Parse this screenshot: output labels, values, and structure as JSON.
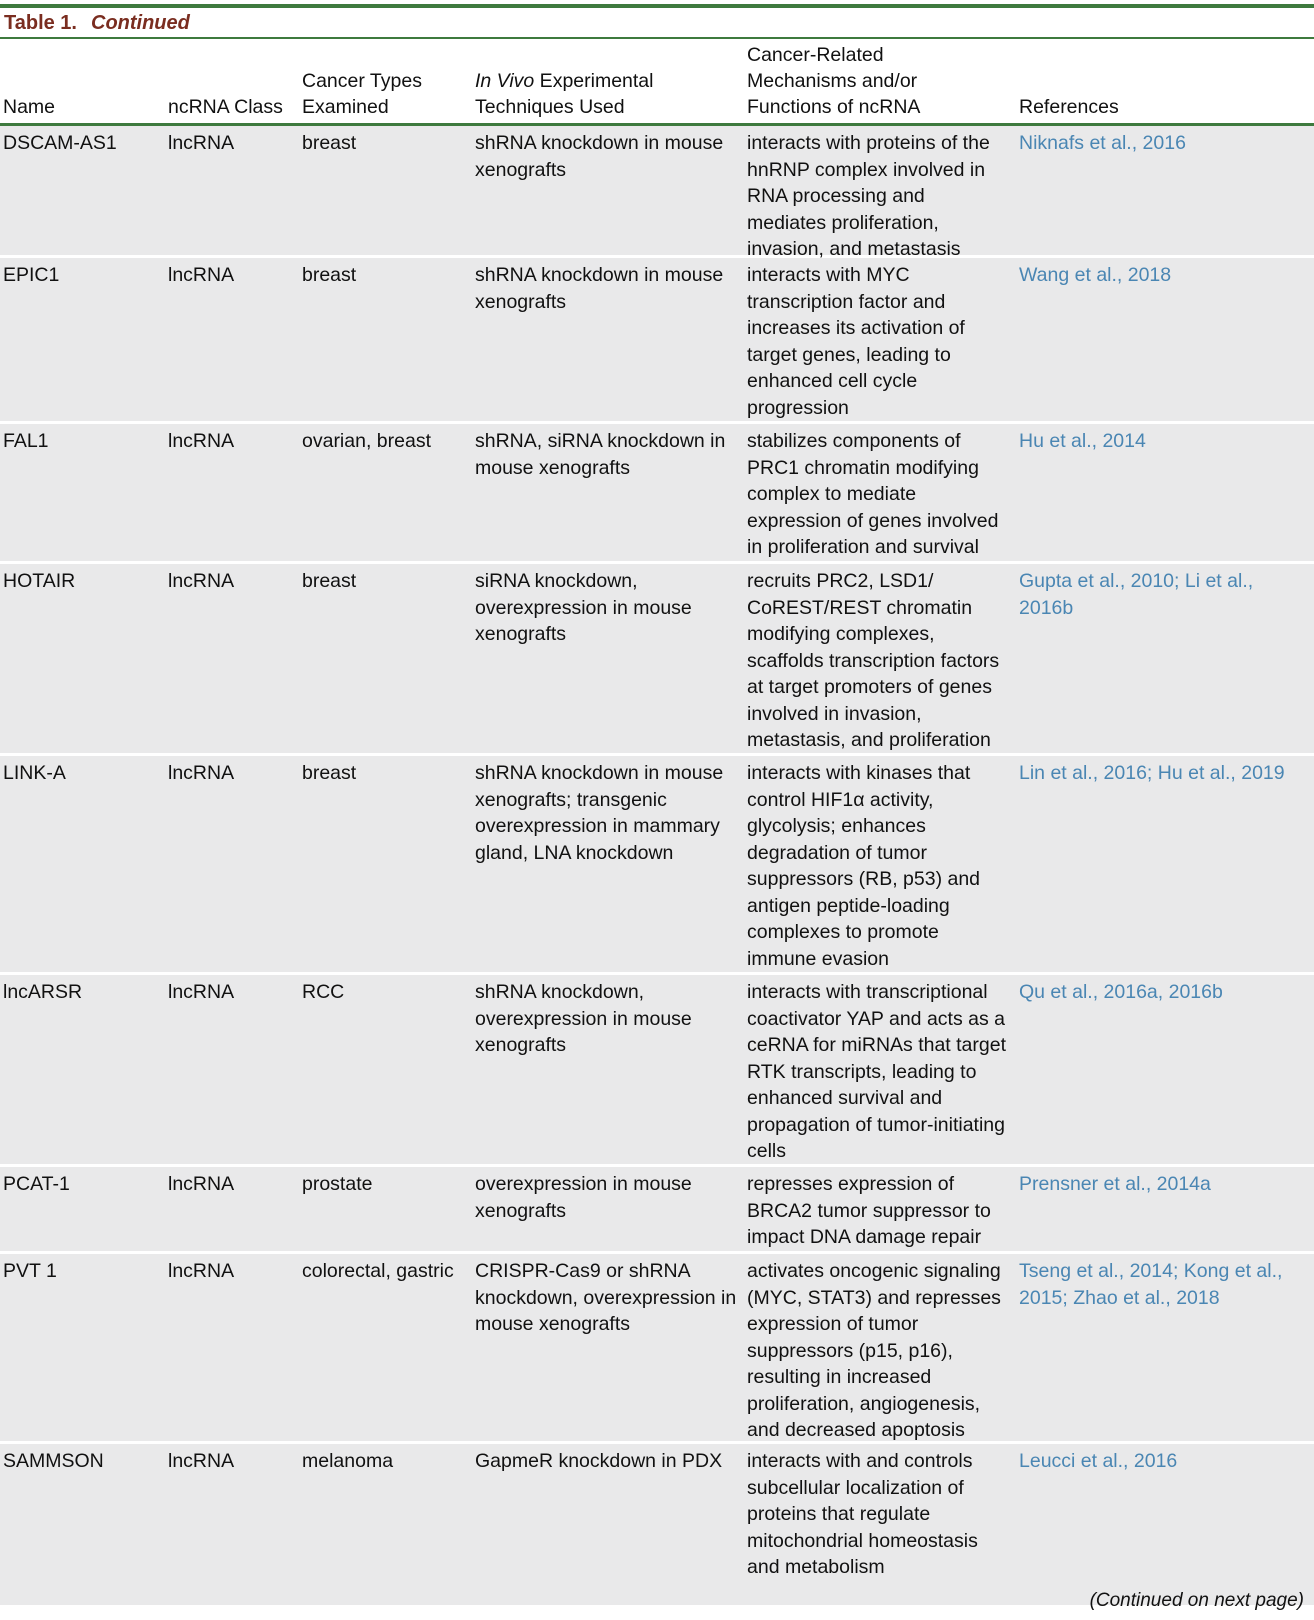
{
  "table": {
    "label": "Table 1.",
    "continued": "Continued",
    "headers": {
      "name": "Name",
      "class": "ncRNA Class",
      "types_line1": "Cancer Types",
      "types_line2": "Examined",
      "tech_italic": "In Vivo",
      "tech_line1_rest": " Experimental",
      "tech_line2": "Techniques Used",
      "mech_line1": "Cancer-Related",
      "mech_line2": "Mechanisms and/or",
      "mech_line3": "Functions of ncRNA",
      "refs": "References"
    },
    "rows": [
      {
        "name": "DSCAM-AS1",
        "class": "lncRNA",
        "types": "breast",
        "tech": "shRNA knockdown in mouse xenografts",
        "mech": "interacts with proteins of the hnRNP complex involved in RNA processing and mediates proliferation, invasion, and metastasis",
        "refs": "Niknafs et al., 2016"
      },
      {
        "name": "EPIC1",
        "class": "lncRNA",
        "types": "breast",
        "tech": "shRNA knockdown in mouse xenografts",
        "mech": "interacts with MYC transcription factor and increases its activation of target genes, leading to enhanced cell cycle progression",
        "refs": "Wang et al., 2018"
      },
      {
        "name": "FAL1",
        "class": "lncRNA",
        "types": "ovarian, breast",
        "tech": "shRNA, siRNA knockdown in mouse xenografts",
        "mech": "stabilizes components of PRC1 chromatin modifying complex to mediate expression of genes involved in proliferation and survival",
        "refs": "Hu et al., 2014"
      },
      {
        "name": "HOTAIR",
        "class": "lncRNA",
        "types": "breast",
        "tech": "siRNA knockdown, overexpression in mouse xenografts",
        "mech": "recruits PRC2, LSD1/ CoREST/REST chromatin modifying complexes, scaffolds transcription factors at target promoters of genes involved in invasion, metastasis, and proliferation",
        "refs": "Gupta et al., 2010; Li et al., 2016b"
      },
      {
        "name": "LINK-A",
        "class": "lncRNA",
        "types": "breast",
        "tech": "shRNA knockdown in mouse xenografts; transgenic overexpression in mammary gland, LNA knockdown",
        "mech": "interacts with kinases that control HIF1α activity, glycolysis; enhances degradation of tumor suppressors (RB, p53) and antigen peptide-loading complexes to promote immune evasion",
        "refs": "Lin et al., 2016; Hu et al., 2019"
      },
      {
        "name": "lncARSR",
        "class": "lncRNA",
        "types": "RCC",
        "tech": "shRNA knockdown, overexpression in mouse xenografts",
        "mech": "interacts with transcriptional coactivator YAP and acts as a ceRNA for miRNAs that target RTK transcripts, leading to enhanced survival and propagation of tumor-initiating cells",
        "refs": "Qu et al., 2016a, 2016b"
      },
      {
        "name": "PCAT-1",
        "class": "lncRNA",
        "types": "prostate",
        "tech": "overexpression in mouse xenografts",
        "mech": "represses expression of BRCA2 tumor suppressor to impact DNA damage repair",
        "refs": "Prensner et al., 2014a"
      },
      {
        "name": "PVT 1",
        "class": "lncRNA",
        "types": "colorectal, gastric",
        "tech": "CRISPR-Cas9 or shRNA knockdown, overexpression in mouse xenografts",
        "mech": "activates oncogenic signaling (MYC, STAT3) and represses expression of tumor suppressors (p15, p16), resulting in increased proliferation, angiogenesis, and decreased apoptosis",
        "refs": "Tseng et al., 2014; Kong et al., 2015; Zhao et al., 2018"
      },
      {
        "name": "SAMMSON",
        "class": "lncRNA",
        "types": "melanoma",
        "tech": "GapmeR knockdown in PDX",
        "mech": "interacts with and controls subcellular localization of proteins that regulate mitochondrial homeostasis and metabolism",
        "refs": "Leucci et al., 2016"
      }
    ],
    "footer": "(Continued on next page)"
  }
}
